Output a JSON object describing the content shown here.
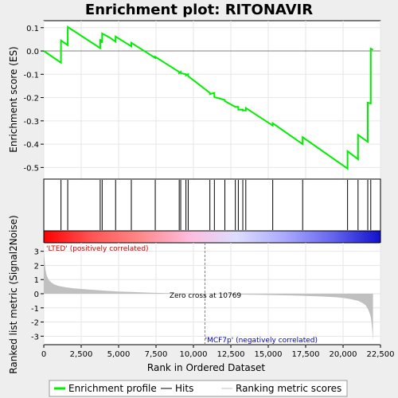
{
  "chart_data": {
    "type": "line",
    "title": "Enrichment plot: RITONAVIR",
    "es_panel": {
      "ylabel": "Enrichment score (ES)",
      "ylim": [
        -0.55,
        0.13
      ],
      "yticks": [
        0.1,
        0.0,
        -0.1,
        -0.2,
        -0.3,
        -0.4,
        -0.5
      ],
      "ytick_labels": [
        "0.1",
        "0.0",
        "-0.1",
        "-0.2",
        "-0.3",
        "-0.4",
        "-0.5"
      ],
      "series": [
        {
          "name": "Enrichment profile",
          "color": "#00ee00",
          "x": [
            0,
            1150,
            1150,
            1600,
            1600,
            3770,
            3770,
            3900,
            3900,
            4400,
            4800,
            4800,
            5850,
            5850,
            7450,
            7450,
            9050,
            9050,
            9150,
            9150,
            9500,
            9500,
            9650,
            9650,
            11100,
            11100,
            11400,
            11400,
            12100,
            12100,
            12800,
            12800,
            13000,
            13000,
            13300,
            13300,
            13500,
            13500,
            15300,
            15300,
            17300,
            17300,
            20300,
            20300,
            21000,
            21000,
            21650,
            21650,
            21850,
            21850,
            22000
          ],
          "y": [
            0.0,
            -0.05,
            0.045,
            0.025,
            0.103,
            0.012,
            0.05,
            0.035,
            0.075,
            0.058,
            0.04,
            0.062,
            0.02,
            0.035,
            -0.03,
            -0.025,
            -0.09,
            -0.095,
            -0.09,
            -0.095,
            -0.1,
            -0.105,
            -0.1,
            -0.108,
            -0.18,
            -0.185,
            -0.18,
            -0.198,
            -0.21,
            -0.215,
            -0.24,
            -0.24,
            -0.24,
            -0.252,
            -0.252,
            -0.255,
            -0.255,
            -0.245,
            -0.32,
            -0.31,
            -0.4,
            -0.37,
            -0.505,
            -0.43,
            -0.465,
            -0.36,
            -0.39,
            -0.222,
            -0.225,
            0.01,
            0.005
          ]
        }
      ]
    },
    "hits": {
      "name": "Hits",
      "positions": [
        1150,
        1600,
        3770,
        3900,
        4800,
        5850,
        7450,
        9050,
        9150,
        9500,
        9650,
        11100,
        11400,
        12100,
        12800,
        13000,
        13300,
        13500,
        15300,
        17300,
        20300,
        21000,
        21650,
        21850
      ]
    },
    "metric_panel": {
      "name": "Ranking metric scores",
      "ylabel": "Ranked list metric (Signal2Noise)",
      "ylim": [
        -3.6,
        3.6
      ],
      "yticks": [
        3,
        2,
        1,
        0,
        -1,
        -2,
        -3
      ],
      "ytick_labels": [
        "3",
        "2",
        "1",
        "0",
        "-1",
        "-2",
        "-3"
      ],
      "x": [
        0,
        40,
        100,
        200,
        350,
        500,
        700,
        1000,
        1500,
        2000,
        3000,
        4000,
        5000,
        6000,
        7000,
        8000,
        9000,
        10000,
        10769,
        11500,
        12500,
        13500,
        14500,
        15500,
        16500,
        17500,
        18500,
        19500,
        20000,
        20500,
        21000,
        21300,
        21500,
        21650,
        21750,
        21850,
        21900,
        21950,
        22000
      ],
      "y": [
        3.1,
        2.5,
        1.75,
        1.25,
        0.95,
        0.8,
        0.65,
        0.55,
        0.45,
        0.38,
        0.3,
        0.22,
        0.16,
        0.12,
        0.08,
        0.05,
        0.03,
        0.01,
        0.0,
        -0.02,
        -0.04,
        -0.06,
        -0.08,
        -0.1,
        -0.12,
        -0.15,
        -0.19,
        -0.25,
        -0.3,
        -0.38,
        -0.5,
        -0.65,
        -0.8,
        -1.05,
        -1.3,
        -1.65,
        -2.0,
        -2.6,
        -3.3
      ],
      "fill_color": "#c0c0c0",
      "zero_cross_label": "Zero cross at 10769",
      "zero_cross": 10769,
      "pos_label": "'LTED' (positively correlated)",
      "neg_label": "'MCF7p' (negatively correlated)",
      "pos_color": "#cc0000",
      "neg_color": "#0000cc"
    },
    "xaxis": {
      "label": "Rank in Ordered Dataset",
      "xlim": [
        0,
        22500
      ],
      "xticks": [
        0,
        2500,
        5000,
        7500,
        10000,
        12500,
        15000,
        17500,
        20000,
        22500
      ],
      "xtick_labels": [
        "0",
        "2,500",
        "5,000",
        "7,500",
        "10,000",
        "12,500",
        "15,000",
        "17,500",
        "20,000",
        "22,500"
      ]
    },
    "legend": {
      "position": "bottom",
      "items": [
        {
          "label": "Enrichment profile",
          "color": "#00ee00",
          "kind": "line"
        },
        {
          "label": "Hits",
          "color": "#000000",
          "kind": "line"
        },
        {
          "label": "Ranking metric scores",
          "color": "#c0c0c0",
          "kind": "line"
        }
      ]
    },
    "colorbar_stops": [
      "#ff0000",
      "#ff5555",
      "#ff8888",
      "#ffbbdd",
      "#ddddff",
      "#aaaaff",
      "#6666ee",
      "#1111cc"
    ]
  }
}
